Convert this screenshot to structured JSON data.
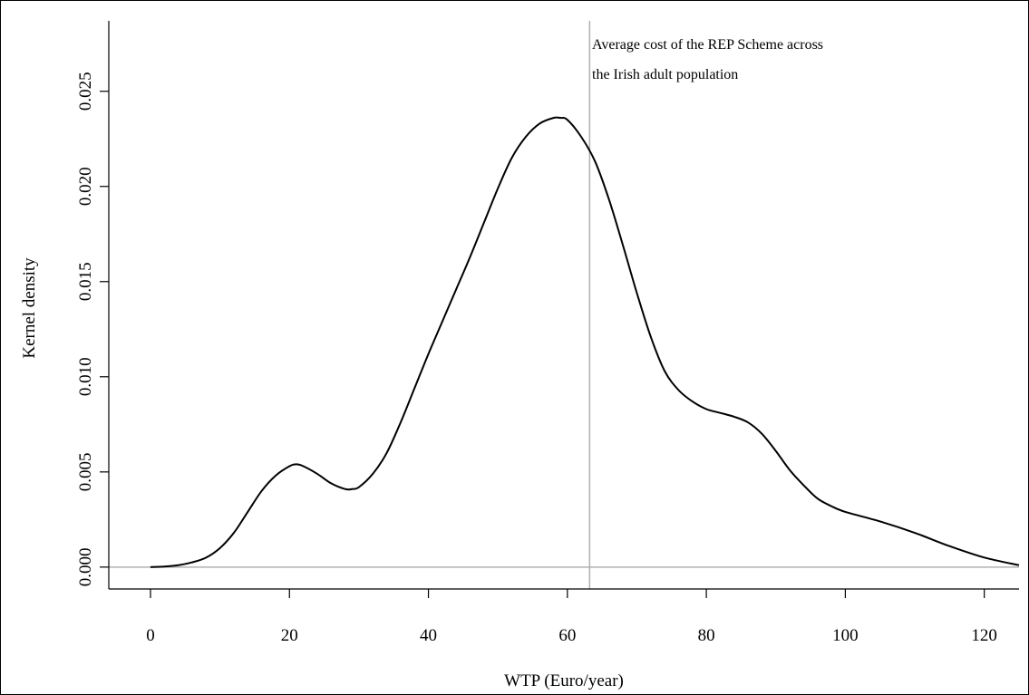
{
  "chart_data": {
    "type": "line",
    "title": "",
    "xlabel": "WTP (Euro/year)",
    "ylabel": "Kernel density",
    "xlim": [
      -6,
      125
    ],
    "ylim": [
      -0.00115,
      0.0287
    ],
    "x_ticks": [
      0,
      20,
      40,
      60,
      80,
      100,
      120
    ],
    "x_tick_labels": [
      "0",
      "20",
      "40",
      "60",
      "80",
      "100",
      "120"
    ],
    "y_ticks": [
      0.0,
      0.005,
      0.01,
      0.015,
      0.02,
      0.025
    ],
    "y_tick_labels": [
      "0.000",
      "0.005",
      "0.010",
      "0.015",
      "0.020",
      "0.025"
    ],
    "grid": false,
    "series": [
      {
        "x": [
          0,
          2,
          4,
          6,
          8,
          10,
          12,
          14,
          16,
          18,
          20,
          21,
          22,
          24,
          26,
          28,
          29,
          30,
          32,
          34,
          36,
          38,
          40,
          42,
          44,
          46,
          48,
          50,
          52,
          54,
          56,
          58,
          59,
          60,
          62,
          64,
          66,
          68,
          70,
          72,
          74,
          76,
          78,
          80,
          82,
          84,
          86,
          88,
          90,
          92,
          94,
          96,
          98,
          100,
          105,
          110,
          115,
          120,
          125
        ],
        "y": [
          0.0,
          3e-05,
          0.0001,
          0.00025,
          0.0005,
          0.001,
          0.0018,
          0.0029,
          0.004,
          0.0048,
          0.0053,
          0.0054,
          0.0053,
          0.0049,
          0.0044,
          0.0041,
          0.0041,
          0.0042,
          0.0049,
          0.006,
          0.0076,
          0.0094,
          0.0112,
          0.0129,
          0.0146,
          0.0163,
          0.0181,
          0.0199,
          0.0215,
          0.0226,
          0.0233,
          0.0236,
          0.0236,
          0.0235,
          0.0226,
          0.0213,
          0.0193,
          0.0169,
          0.0144,
          0.0121,
          0.0103,
          0.0093,
          0.0087,
          0.0083,
          0.0081,
          0.0079,
          0.0076,
          0.007,
          0.0061,
          0.0051,
          0.0043,
          0.0036,
          0.0032,
          0.0029,
          0.0024,
          0.0018,
          0.0011,
          0.0005,
          0.0001
        ]
      }
    ],
    "reference_lines": {
      "vertical_x": 63.2,
      "horizontal_y": 0.0
    },
    "annotation": {
      "line1": "Average cost of the REP Scheme across",
      "line2": "the Irish adult population"
    }
  },
  "colors": {
    "curve": "#000000",
    "reference_line": "#b0b0b0",
    "axis": "#000000"
  }
}
